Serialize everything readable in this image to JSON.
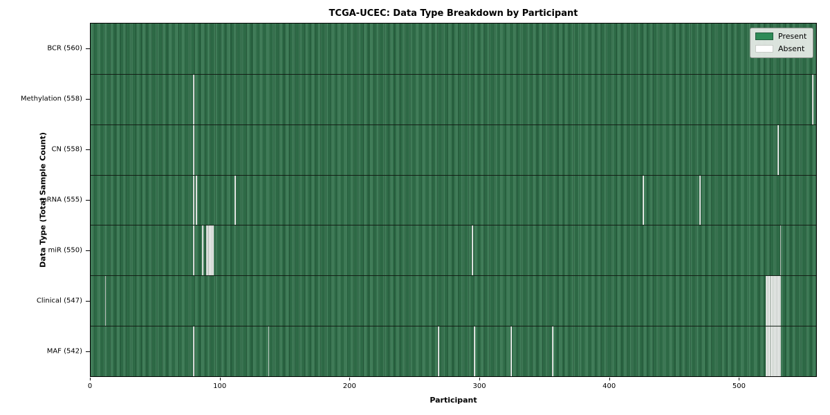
{
  "title": "TCGA-UCEC: Data Type Breakdown by Participant",
  "chart_data": {
    "type": "heatmap",
    "title": "TCGA-UCEC: Data Type Breakdown by Participant",
    "xlabel": "Participant",
    "ylabel": "Data Type (Total Sample Count)",
    "xlim": [
      0,
      560
    ],
    "x_ticks": [
      0,
      100,
      200,
      300,
      400,
      500
    ],
    "n_participants": 560,
    "grid": false,
    "legend_position": "upper right",
    "legend": [
      {
        "label": "Present",
        "color": "#2e8b57"
      },
      {
        "label": "Absent",
        "color": "#ffffff"
      }
    ],
    "cell_states": {
      "present": 1,
      "absent": 0
    },
    "rows": [
      {
        "label": "BCR (560)",
        "data_type": "BCR",
        "present_count": 560,
        "absent_participants": []
      },
      {
        "label": "Methylation (558)",
        "data_type": "Methylation",
        "present_count": 558,
        "absent_participants": [
          79,
          557
        ]
      },
      {
        "label": "CN (558)",
        "data_type": "CN",
        "present_count": 558,
        "absent_participants": [
          79,
          530
        ]
      },
      {
        "label": "mRNA (555)",
        "data_type": "mRNA",
        "present_count": 555,
        "absent_participants": [
          79,
          81,
          111,
          426,
          470
        ]
      },
      {
        "label": "miR (550)",
        "data_type": "miR",
        "present_count": 550,
        "absent_participants": [
          79,
          86,
          89,
          90,
          91,
          92,
          93,
          94,
          294,
          532
        ]
      },
      {
        "label": "Clinical (547)",
        "data_type": "Clinical",
        "present_count": 547,
        "absent_participants": [
          11,
          521,
          522,
          523,
          524,
          525,
          526,
          527,
          528,
          529,
          530,
          531,
          532
        ]
      },
      {
        "label": "MAF (542)",
        "data_type": "MAF",
        "present_count": 542,
        "absent_participants": [
          79,
          137,
          268,
          296,
          324,
          356,
          521,
          522,
          523,
          524,
          525,
          526,
          527,
          528,
          529,
          530,
          531,
          532
        ]
      }
    ],
    "colors": {
      "present_fill": "#2e8b57",
      "absent_fill": "#ffffff",
      "cell_edge": "#1f4a2e",
      "row_separator": "#1a1a1a"
    }
  }
}
